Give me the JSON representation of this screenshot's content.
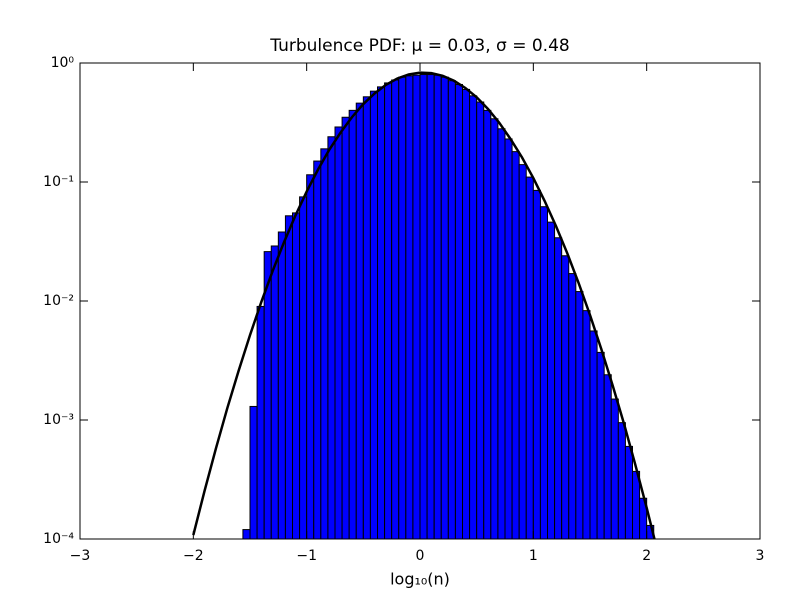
{
  "chart_data": {
    "type": "histogram",
    "title": "Turbulence PDF: μ = 0.03, σ = 0.48",
    "x_label": "log₁₀(n)",
    "log_y": true,
    "color": "#0000ff",
    "bins": [
      -1.5625,
      -1.5,
      -1.4375,
      -1.375,
      -1.3125,
      -1.25,
      -1.1875,
      -1.125,
      -1.0625,
      -1,
      -0.9375,
      -0.875,
      -0.8125,
      -0.75,
      -0.6875,
      -0.625,
      -0.5625,
      -0.5,
      -0.4375,
      -0.375,
      -0.3125,
      -0.25,
      -0.1875,
      -0.125,
      -0.0625,
      0,
      0.0625,
      0.125,
      0.1875,
      0.25,
      0.3125,
      0.375,
      0.4375,
      0.5,
      0.5625,
      0.625,
      0.6875,
      0.75,
      0.8125,
      0.875,
      0.9375,
      1,
      1.0625,
      1.125,
      1.1875,
      1.25,
      1.3125,
      1.375,
      1.4375,
      1.5,
      1.5625,
      1.625,
      1.6875,
      1.75,
      1.8125,
      1.875,
      1.9375,
      2,
      2.0625
    ],
    "values": [
      0.00012,
      0.0013,
      0.009,
      0.026,
      0.029,
      0.038,
      0.052,
      0.055,
      0.075,
      0.115,
      0.15,
      0.19,
      0.24,
      0.29,
      0.35,
      0.4,
      0.46,
      0.52,
      0.58,
      0.63,
      0.68,
      0.72,
      0.76,
      0.78,
      0.79,
      0.8,
      0.8,
      0.79,
      0.76,
      0.71,
      0.66,
      0.6,
      0.53,
      0.47,
      0.4,
      0.34,
      0.28,
      0.23,
      0.18,
      0.14,
      0.11,
      0.085,
      0.062,
      0.046,
      0.034,
      0.024,
      0.017,
      0.012,
      0.0083,
      0.0056,
      0.0037,
      0.0024,
      0.0015,
      0.00095,
      0.0006,
      0.00037,
      0.00022,
      0.00013
    ],
    "fit": {
      "color": "#000000",
      "x": [
        -2.0,
        -1.9,
        -1.8,
        -1.7,
        -1.6,
        -1.5,
        -1.4,
        -1.3,
        -1.2,
        -1.1,
        -1.0,
        -0.9,
        -0.8,
        -0.7,
        -0.6,
        -0.5,
        -0.4,
        -0.3,
        -0.2,
        -0.1,
        0.0,
        0.1,
        0.2,
        0.3,
        0.4,
        0.5,
        0.6,
        0.7,
        0.8,
        0.9,
        1.0,
        1.1,
        1.2,
        1.3,
        1.4,
        1.5,
        1.6,
        1.7,
        1.8,
        1.9,
        2.0,
        2.1
      ],
      "y": [
        0.000108,
        0.000256,
        0.00058,
        0.00126,
        0.0026,
        0.00517,
        0.00982,
        0.0179,
        0.0312,
        0.052,
        0.0831,
        0.127,
        0.187,
        0.261,
        0.351,
        0.452,
        0.556,
        0.656,
        0.741,
        0.801,
        0.829,
        0.822,
        0.78,
        0.709,
        0.617,
        0.515,
        0.411,
        0.314,
        0.229,
        0.161,
        0.108,
        0.0692,
        0.0426,
        0.0251,
        0.0141,
        0.00763,
        0.00394,
        0.00195,
        0.00093,
        0.00042,
        0.000183,
        7.6e-05
      ]
    },
    "xlim": [
      -3,
      3
    ],
    "xticks": [
      {
        "value": -3,
        "label": "−3"
      },
      {
        "value": -2,
        "label": "−2"
      },
      {
        "value": -1,
        "label": "−1"
      },
      0,
      1,
      2,
      3
    ],
    "ylim": [
      0.0001,
      1
    ],
    "yticks": [
      {
        "value": 0.0001,
        "label": "10⁻⁴"
      },
      {
        "value": 0.001,
        "label": "10⁻³"
      },
      {
        "value": 0.01,
        "label": "10⁻²"
      },
      {
        "value": 0.1,
        "label": "10⁻¹"
      },
      {
        "value": 1,
        "label": "10⁰"
      }
    ]
  }
}
